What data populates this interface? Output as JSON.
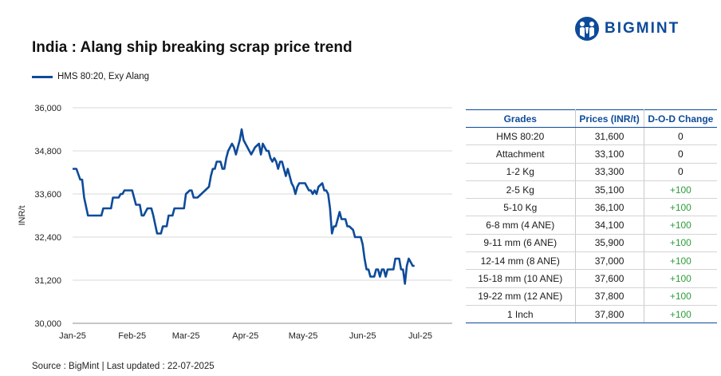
{
  "header": {
    "title": "India : Alang ship breaking scrap price trend",
    "logo_text": "BIGMINT"
  },
  "legend": {
    "label": "HMS 80:20, Exy Alang"
  },
  "footer": {
    "source": "Source : BigMint | Last updated : 22-07-2025"
  },
  "colors": {
    "series": "#0d4b9a",
    "positive": "#2e9e3a",
    "grid": "#d9d9d9"
  },
  "chart_data": {
    "type": "line",
    "title": "India : Alang ship breaking scrap price trend",
    "ylabel": "INR/t",
    "xlabel": "",
    "ylim": [
      30000,
      36000
    ],
    "yticks": [
      30000,
      31200,
      32400,
      33600,
      34800,
      36000
    ],
    "ytick_labels": [
      "30,000",
      "31,200",
      "32,400",
      "33,600",
      "34,800",
      "36,000"
    ],
    "xticks": [
      "2025-01-01",
      "2025-02-01",
      "2025-03-01",
      "2025-04-01",
      "2025-05-01",
      "2025-06-01",
      "2025-07-01"
    ],
    "xtick_labels": [
      "Jan-25",
      "Feb-25",
      "Mar-25",
      "Apr-25",
      "May-25",
      "Jun-25",
      "Jul-25"
    ],
    "grid": true,
    "legend_position": "top-left",
    "series": [
      {
        "name": "HMS 80:20, Exy Alang",
        "points": [
          [
            "2025-01-01",
            34300
          ],
          [
            "2025-01-03",
            34300
          ],
          [
            "2025-01-05",
            34000
          ],
          [
            "2025-01-06",
            34000
          ],
          [
            "2025-01-07",
            33500
          ],
          [
            "2025-01-09",
            33000
          ],
          [
            "2025-01-10",
            33000
          ],
          [
            "2025-01-16",
            33000
          ],
          [
            "2025-01-17",
            33200
          ],
          [
            "2025-01-21",
            33200
          ],
          [
            "2025-01-22",
            33500
          ],
          [
            "2025-01-25",
            33500
          ],
          [
            "2025-01-26",
            33600
          ],
          [
            "2025-01-27",
            33600
          ],
          [
            "2025-01-28",
            33700
          ],
          [
            "2025-02-01",
            33700
          ],
          [
            "2025-02-02",
            33500
          ],
          [
            "2025-02-03",
            33300
          ],
          [
            "2025-02-05",
            33300
          ],
          [
            "2025-02-06",
            33000
          ],
          [
            "2025-02-07",
            33000
          ],
          [
            "2025-02-09",
            33200
          ],
          [
            "2025-02-11",
            33200
          ],
          [
            "2025-02-12",
            33000
          ],
          [
            "2025-02-14",
            32500
          ],
          [
            "2025-02-16",
            32500
          ],
          [
            "2025-02-17",
            32700
          ],
          [
            "2025-02-19",
            32700
          ],
          [
            "2025-02-20",
            33000
          ],
          [
            "2025-02-22",
            33000
          ],
          [
            "2025-02-23",
            33200
          ],
          [
            "2025-02-28",
            33200
          ],
          [
            "2025-03-01",
            33600
          ],
          [
            "2025-03-03",
            33700
          ],
          [
            "2025-03-04",
            33700
          ],
          [
            "2025-03-05",
            33500
          ],
          [
            "2025-03-07",
            33500
          ],
          [
            "2025-03-09",
            33600
          ],
          [
            "2025-03-11",
            33700
          ],
          [
            "2025-03-13",
            33800
          ],
          [
            "2025-03-14",
            34100
          ],
          [
            "2025-03-15",
            34300
          ],
          [
            "2025-03-16",
            34300
          ],
          [
            "2025-03-17",
            34500
          ],
          [
            "2025-03-19",
            34500
          ],
          [
            "2025-03-20",
            34300
          ],
          [
            "2025-03-21",
            34300
          ],
          [
            "2025-03-22",
            34600
          ],
          [
            "2025-03-23",
            34800
          ],
          [
            "2025-03-25",
            35000
          ],
          [
            "2025-03-26",
            34900
          ],
          [
            "2025-03-27",
            34700
          ],
          [
            "2025-03-29",
            35100
          ],
          [
            "2025-03-30",
            35400
          ],
          [
            "2025-03-31",
            35100
          ],
          [
            "2025-04-02",
            34900
          ],
          [
            "2025-04-04",
            34700
          ],
          [
            "2025-04-06",
            34900
          ],
          [
            "2025-04-08",
            35000
          ],
          [
            "2025-04-09",
            34700
          ],
          [
            "2025-04-10",
            35000
          ],
          [
            "2025-04-12",
            34800
          ],
          [
            "2025-04-13",
            34800
          ],
          [
            "2025-04-14",
            34600
          ],
          [
            "2025-04-15",
            34500
          ],
          [
            "2025-04-16",
            34600
          ],
          [
            "2025-04-17",
            34500
          ],
          [
            "2025-04-18",
            34300
          ],
          [
            "2025-04-19",
            34500
          ],
          [
            "2025-04-20",
            34500
          ],
          [
            "2025-04-21",
            34300
          ],
          [
            "2025-04-22",
            34100
          ],
          [
            "2025-04-23",
            34300
          ],
          [
            "2025-04-24",
            34100
          ],
          [
            "2025-04-25",
            33900
          ],
          [
            "2025-04-26",
            33800
          ],
          [
            "2025-04-27",
            33600
          ],
          [
            "2025-04-28",
            33800
          ],
          [
            "2025-04-29",
            33900
          ],
          [
            "2025-05-02",
            33900
          ],
          [
            "2025-05-03",
            33800
          ],
          [
            "2025-05-04",
            33700
          ],
          [
            "2025-05-05",
            33700
          ],
          [
            "2025-05-06",
            33600
          ],
          [
            "2025-05-07",
            33700
          ],
          [
            "2025-05-08",
            33600
          ],
          [
            "2025-05-09",
            33800
          ],
          [
            "2025-05-11",
            33900
          ],
          [
            "2025-05-12",
            33700
          ],
          [
            "2025-05-13",
            33700
          ],
          [
            "2025-05-14",
            33600
          ],
          [
            "2025-05-15",
            33200
          ],
          [
            "2025-05-16",
            32500
          ],
          [
            "2025-05-17",
            32700
          ],
          [
            "2025-05-18",
            32700
          ],
          [
            "2025-05-19",
            32900
          ],
          [
            "2025-05-20",
            33100
          ],
          [
            "2025-05-21",
            32900
          ],
          [
            "2025-05-23",
            32900
          ],
          [
            "2025-05-24",
            32700
          ],
          [
            "2025-05-25",
            32700
          ],
          [
            "2025-05-27",
            32600
          ],
          [
            "2025-05-28",
            32400
          ],
          [
            "2025-05-31",
            32400
          ],
          [
            "2025-06-01",
            32200
          ],
          [
            "2025-06-02",
            31800
          ],
          [
            "2025-06-03",
            31500
          ],
          [
            "2025-06-04",
            31500
          ],
          [
            "2025-06-05",
            31300
          ],
          [
            "2025-06-07",
            31300
          ],
          [
            "2025-06-08",
            31500
          ],
          [
            "2025-06-09",
            31500
          ],
          [
            "2025-06-10",
            31300
          ],
          [
            "2025-06-11",
            31500
          ],
          [
            "2025-06-12",
            31500
          ],
          [
            "2025-06-13",
            31300
          ],
          [
            "2025-06-14",
            31500
          ],
          [
            "2025-06-17",
            31500
          ],
          [
            "2025-06-18",
            31800
          ],
          [
            "2025-06-20",
            31800
          ],
          [
            "2025-06-21",
            31500
          ],
          [
            "2025-06-22",
            31500
          ],
          [
            "2025-06-23",
            31100
          ],
          [
            "2025-06-24",
            31600
          ],
          [
            "2025-06-25",
            31800
          ],
          [
            "2025-06-26",
            31700
          ],
          [
            "2025-06-27",
            31600
          ],
          [
            "2025-06-28",
            31600
          ]
        ]
      }
    ]
  },
  "table": {
    "headers": [
      "Grades",
      "Prices (INR/t)",
      "D-O-D Change"
    ],
    "rows": [
      [
        "HMS 80:20",
        "31,600",
        "0"
      ],
      [
        "Attachment",
        "33,100",
        "0"
      ],
      [
        "1-2 Kg",
        "33,300",
        "0"
      ],
      [
        "2-5 Kg",
        "35,100",
        "+100"
      ],
      [
        "5-10 Kg",
        "36,100",
        "+100"
      ],
      [
        "6-8 mm (4 ANE)",
        "34,100",
        "+100"
      ],
      [
        "9-11 mm (6 ANE)",
        "35,900",
        "+100"
      ],
      [
        "12-14 mm (8 ANE)",
        "37,000",
        "+100"
      ],
      [
        "15-18 mm (10 ANE)",
        "37,600",
        "+100"
      ],
      [
        "19-22 mm (12 ANE)",
        "37,800",
        "+100"
      ],
      [
        "1 Inch",
        "37,800",
        "+100"
      ]
    ]
  }
}
